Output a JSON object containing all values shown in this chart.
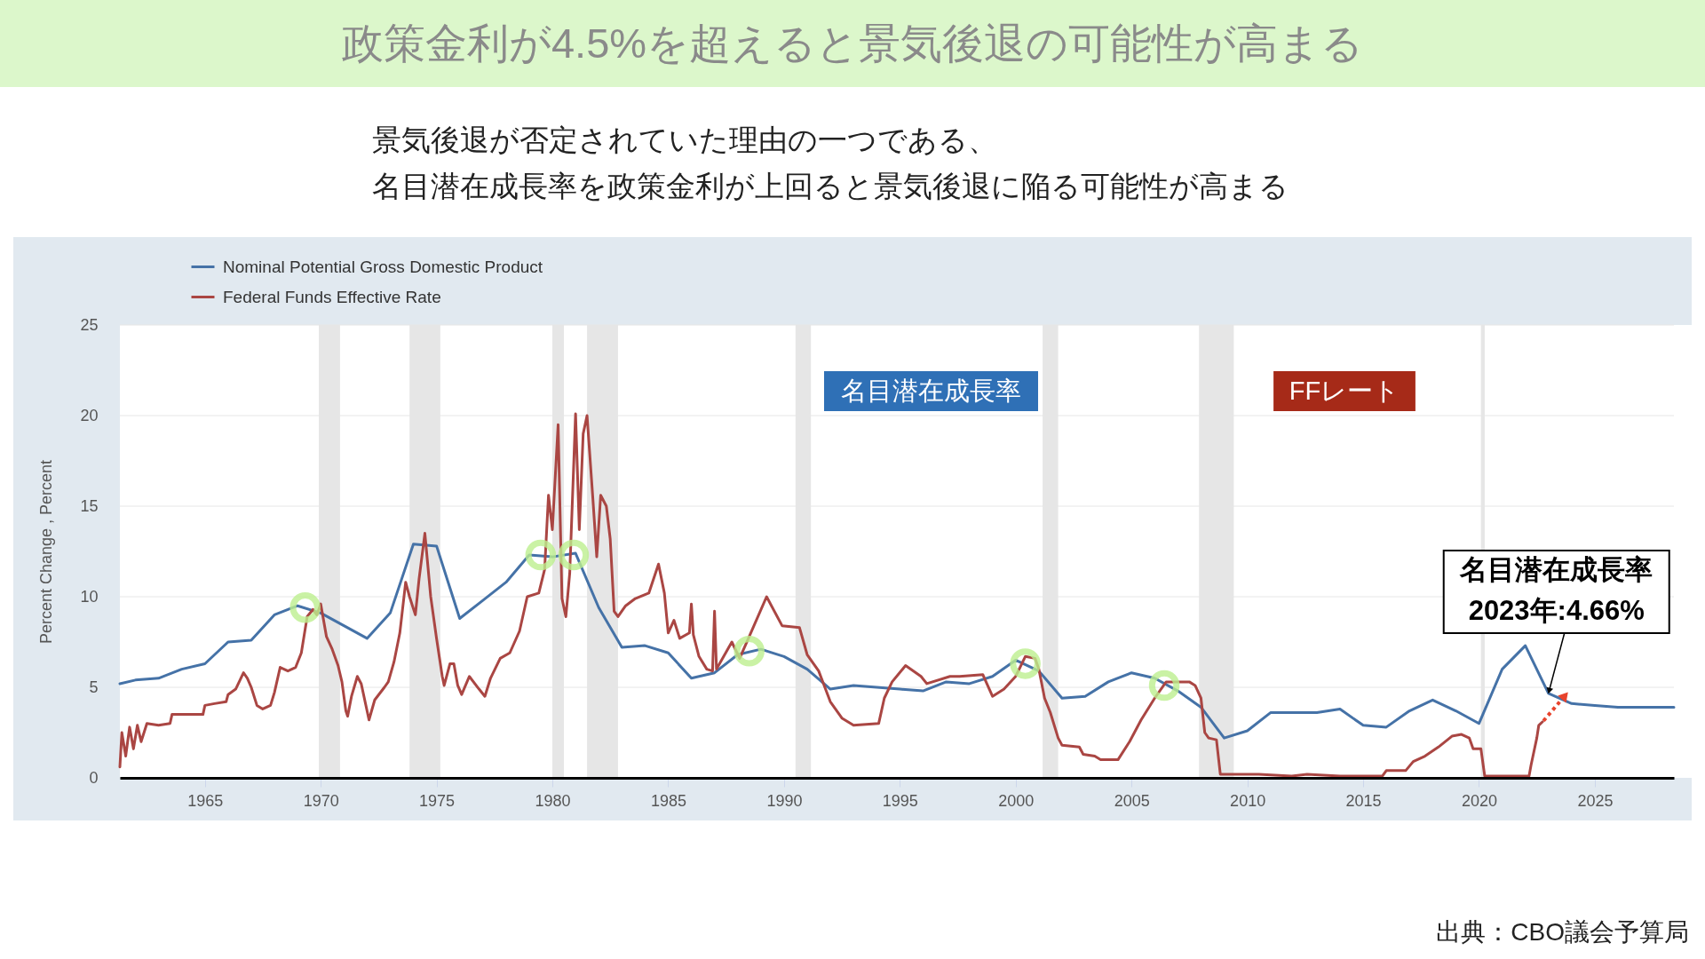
{
  "chart_data": {
    "type": "line",
    "title": "政策金利が4.5%を超えると景気後退の可能性が高まる",
    "subtitle": "景気後退が否定されていた理由の一つである、名目潜在成長率を政策金利が上回ると景気後退に陥る可能性が高まる",
    "ylabel": "Percent Change , Percent",
    "xlim": [
      "1961-05",
      "2028-06"
    ],
    "xticks": [
      "1965",
      "1970",
      "1975",
      "1980",
      "1985",
      "1990",
      "1995",
      "2000",
      "2005",
      "2010",
      "2015",
      "2020",
      "2025"
    ],
    "ylim": [
      0,
      25
    ],
    "yticks": [
      0,
      5,
      10,
      15,
      20,
      25
    ],
    "grid": "y",
    "legend": "top left",
    "series": [
      {
        "name": "Nominal Potential Gross Domestic Product",
        "color": "#4572a7",
        "x": [
          "1961-05",
          "1962-01",
          "1963-01",
          "1964-01",
          "1965-01",
          "1966-01",
          "1967-01",
          "1968-01",
          "1969-01",
          "1970-01",
          "1971-01",
          "1972-01",
          "1973-01",
          "1974-01",
          "1975-01",
          "1976-01",
          "1977-01",
          "1978-01",
          "1979-01",
          "1980-01",
          "1981-01",
          "1982-01",
          "1983-01",
          "1984-01",
          "1985-01",
          "1986-01",
          "1987-01",
          "1988-01",
          "1989-01",
          "1990-01",
          "1991-01",
          "1992-01",
          "1993-01",
          "1994-01",
          "1995-01",
          "1996-01",
          "1997-01",
          "1998-01",
          "1999-01",
          "2000-01",
          "2001-01",
          "2002-01",
          "2003-01",
          "2004-01",
          "2005-01",
          "2006-01",
          "2007-01",
          "2008-01",
          "2009-01",
          "2010-01",
          "2011-01",
          "2012-01",
          "2013-01",
          "2014-01",
          "2015-01",
          "2016-01",
          "2017-01",
          "2018-01",
          "2019-01",
          "2020-01",
          "2021-01",
          "2022-01",
          "2023-01",
          "2024-01",
          "2025-01",
          "2026-01",
          "2027-01",
          "2028-01",
          "2028-06"
        ],
        "values": [
          5.2,
          5.4,
          5.5,
          6.0,
          6.3,
          7.5,
          7.6,
          9.0,
          9.5,
          9.1,
          8.4,
          7.7,
          9.1,
          12.9,
          12.8,
          8.8,
          9.8,
          10.8,
          12.3,
          12.2,
          12.4,
          9.4,
          7.2,
          7.3,
          6.9,
          5.5,
          5.8,
          6.8,
          7.1,
          6.7,
          6.0,
          4.9,
          5.1,
          5.0,
          4.9,
          4.8,
          5.3,
          5.2,
          5.6,
          6.5,
          5.9,
          4.4,
          4.5,
          5.3,
          5.8,
          5.5,
          4.8,
          3.9,
          2.2,
          2.6,
          3.6,
          3.6,
          3.6,
          3.8,
          2.9,
          2.8,
          3.7,
          4.3,
          3.7,
          3.0,
          6.0,
          7.3,
          4.66,
          4.1,
          4.0,
          3.9,
          3.9,
          3.9,
          3.9
        ]
      },
      {
        "name": "Federal Funds Effective Rate",
        "color": "#aa4643",
        "x": [
          "1961-05",
          "1961-06",
          "1961-08",
          "1961-10",
          "1961-12",
          "1962-02",
          "1962-04",
          "1962-07",
          "1963-01",
          "1963-07",
          "1963-08",
          "1964-06",
          "1964-12",
          "1965-01",
          "1965-06",
          "1965-12",
          "1966-01",
          "1966-05",
          "1966-09",
          "1966-11",
          "1967-01",
          "1967-04",
          "1967-07",
          "1967-11",
          "1968-01",
          "1968-04",
          "1968-08",
          "1968-12",
          "1969-03",
          "1969-06",
          "1969-09",
          "1969-11",
          "1970-01",
          "1970-04",
          "1970-07",
          "1970-10",
          "1970-12",
          "1971-02",
          "1971-03",
          "1971-05",
          "1971-08",
          "1971-10",
          "1972-02",
          "1972-05",
          "1972-10",
          "1972-12",
          "1973-03",
          "1973-06",
          "1973-09",
          "1973-11",
          "1974-02",
          "1974-04",
          "1974-07",
          "1974-10",
          "1975-01",
          "1975-04",
          "1975-05",
          "1975-08",
          "1975-10",
          "1975-12",
          "1976-02",
          "1976-06",
          "1976-11",
          "1977-02",
          "1977-05",
          "1977-10",
          "1978-03",
          "1978-08",
          "1978-12",
          "1979-06",
          "1979-09",
          "1979-11",
          "1980-01",
          "1980-04",
          "1980-06",
          "1980-08",
          "1980-10",
          "1981-01",
          "1981-03",
          "1981-05",
          "1981-07",
          "1981-10",
          "1981-12",
          "1982-02",
          "1982-05",
          "1982-07",
          "1982-09",
          "1982-11",
          "1983-03",
          "1983-08",
          "1984-03",
          "1984-08",
          "1984-11",
          "1985-01",
          "1985-04",
          "1985-07",
          "1985-12",
          "1986-01",
          "1986-02",
          "1986-05",
          "1986-09",
          "1986-12",
          "1987-01",
          "1987-02",
          "1987-10",
          "1988-02",
          "1988-07",
          "1989-04",
          "1989-12",
          "1990-09",
          "1991-01",
          "1991-07",
          "1992-01",
          "1992-07",
          "1993-01",
          "1994-02",
          "1994-05",
          "1994-09",
          "1995-04",
          "1995-12",
          "1996-03",
          "1997-03",
          "1997-08",
          "1998-08",
          "1999-01",
          "1999-07",
          "2000-01",
          "2000-06",
          "2000-11",
          "2001-01",
          "2001-04",
          "2001-07",
          "2001-11",
          "2002-01",
          "2002-10",
          "2002-12",
          "2003-06",
          "2003-09",
          "2004-06",
          "2004-12",
          "2005-06",
          "2006-01",
          "2006-07",
          "2007-07",
          "2007-10",
          "2008-01",
          "2008-03",
          "2008-05",
          "2008-09",
          "2008-11",
          "2009-05",
          "2010-07",
          "2011-12",
          "2012-08",
          "2014-01",
          "2015-11",
          "2016-01",
          "2016-11",
          "2017-03",
          "2017-09",
          "2018-04",
          "2018-11",
          "2019-04",
          "2019-08",
          "2019-10",
          "2020-02",
          "2020-04",
          "2021-03",
          "2022-03",
          "2022-04",
          "2022-07",
          "2022-08",
          "2022-10"
        ],
        "values": [
          0.6,
          2.5,
          1.2,
          2.8,
          1.6,
          2.9,
          2.0,
          3.0,
          2.9,
          3.0,
          3.5,
          3.5,
          3.5,
          4.0,
          4.1,
          4.2,
          4.6,
          4.9,
          5.8,
          5.5,
          5.0,
          4.0,
          3.8,
          4.0,
          4.7,
          6.1,
          5.9,
          6.1,
          6.9,
          8.9,
          9.3,
          9.0,
          9.6,
          7.8,
          7.1,
          6.2,
          5.3,
          3.7,
          3.4,
          4.5,
          5.6,
          5.2,
          3.2,
          4.3,
          5.0,
          5.3,
          6.4,
          8.0,
          10.8,
          10.0,
          9.0,
          11.0,
          13.5,
          10.0,
          7.7,
          5.6,
          5.1,
          6.3,
          6.3,
          5.1,
          4.6,
          5.6,
          4.9,
          4.5,
          5.5,
          6.6,
          6.9,
          8.1,
          10.0,
          10.2,
          11.5,
          15.6,
          13.7,
          19.5,
          9.9,
          8.9,
          11.3,
          20.1,
          13.7,
          19.0,
          20.0,
          15.4,
          12.2,
          15.6,
          15.0,
          13.2,
          9.2,
          8.9,
          9.5,
          9.9,
          10.2,
          11.8,
          10.2,
          8.0,
          8.7,
          7.7,
          8.0,
          9.6,
          7.9,
          6.7,
          6.0,
          5.9,
          9.2,
          6.0,
          7.5,
          6.6,
          7.8,
          10.0,
          8.4,
          8.3,
          6.8,
          5.9,
          4.2,
          3.3,
          2.9,
          3.0,
          4.4,
          5.3,
          6.2,
          5.6,
          5.2,
          5.6,
          5.6,
          5.7,
          4.5,
          4.9,
          5.6,
          6.7,
          6.6,
          6.0,
          4.4,
          3.6,
          2.2,
          1.8,
          1.7,
          1.3,
          1.2,
          1.0,
          1.0,
          2.0,
          3.2,
          4.4,
          5.3,
          5.3,
          5.1,
          4.4,
          2.5,
          2.2,
          2.1,
          0.2,
          0.2,
          0.2,
          0.1,
          0.2,
          0.1,
          0.1,
          0.4,
          0.4,
          0.9,
          1.2,
          1.7,
          2.3,
          2.4,
          2.2,
          1.6,
          1.6,
          0.1,
          0.1,
          0.1,
          0.7,
          2.2,
          2.9,
          3.1
        ]
      },
      {
        "type": "scatter",
        "marker": "circle",
        "color": "#bdf08f",
        "x": [
          "1969-05",
          "1979-07",
          "1980-12",
          "1988-07",
          "2000-06",
          "2006-06"
        ],
        "values": [
          9.4,
          12.3,
          12.3,
          7.0,
          6.3,
          5.1
        ]
      }
    ],
    "bands": [
      {
        "axis": "x",
        "from": "1969-12",
        "to": "1970-11",
        "color": "#e6e6e6"
      },
      {
        "axis": "x",
        "from": "1973-11",
        "to": "1975-03",
        "color": "#e6e6e6"
      },
      {
        "axis": "x",
        "from": "1980-01",
        "to": "1980-07",
        "color": "#e6e6e6"
      },
      {
        "axis": "x",
        "from": "1981-07",
        "to": "1982-11",
        "color": "#e6e6e6"
      },
      {
        "axis": "x",
        "from": "1990-07",
        "to": "1991-03",
        "color": "#e6e6e6"
      },
      {
        "axis": "x",
        "from": "2001-03",
        "to": "2001-11",
        "color": "#e6e6e6"
      },
      {
        "axis": "x",
        "from": "2007-12",
        "to": "2009-06",
        "color": "#e6e6e6"
      },
      {
        "axis": "x",
        "from": "2020-02",
        "to": "2020-04",
        "color": "#e6e6e6"
      }
    ],
    "annotations": [
      "名目潜在成長率",
      "FFレート",
      {
        "text": "名目潜在成長率\n2023年:4.66%",
        "x": "2023-01",
        "y": 4.66
      },
      "出典：CBO議会予算局"
    ]
  }
}
